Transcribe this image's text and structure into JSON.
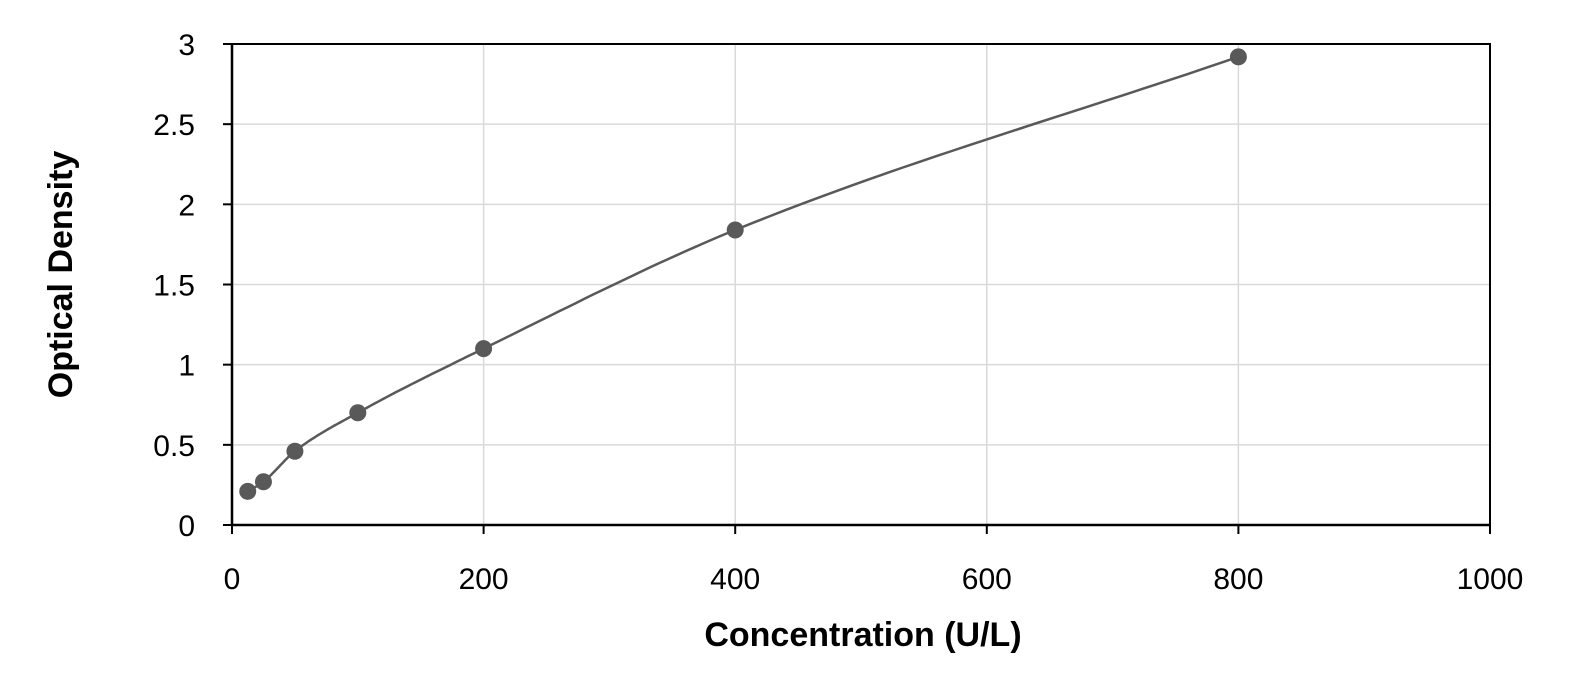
{
  "chart_data": {
    "type": "scatter",
    "title": "",
    "xlabel": "Concentration (U/L)",
    "ylabel": "Optical Density",
    "xlim": [
      0,
      1000
    ],
    "ylim": [
      0,
      3
    ],
    "xticks": [
      "0",
      "200",
      "400",
      "600",
      "800",
      "1000"
    ],
    "yticks": [
      "0",
      "0.5",
      "1",
      "1.5",
      "2",
      "2.5",
      "3"
    ],
    "grid": true,
    "legend": "none",
    "series": [
      {
        "x": [
          12.5,
          25,
          50,
          100,
          200,
          400,
          800
        ],
        "y": [
          0.21,
          0.27,
          0.46,
          0.7,
          1.1,
          1.84,
          2.92
        ],
        "trendline": "smooth curve fit"
      }
    ],
    "colors": {
      "marker": "#595959",
      "line": "#595959",
      "grid": "#d9d9d9",
      "axis": "#000000"
    }
  }
}
